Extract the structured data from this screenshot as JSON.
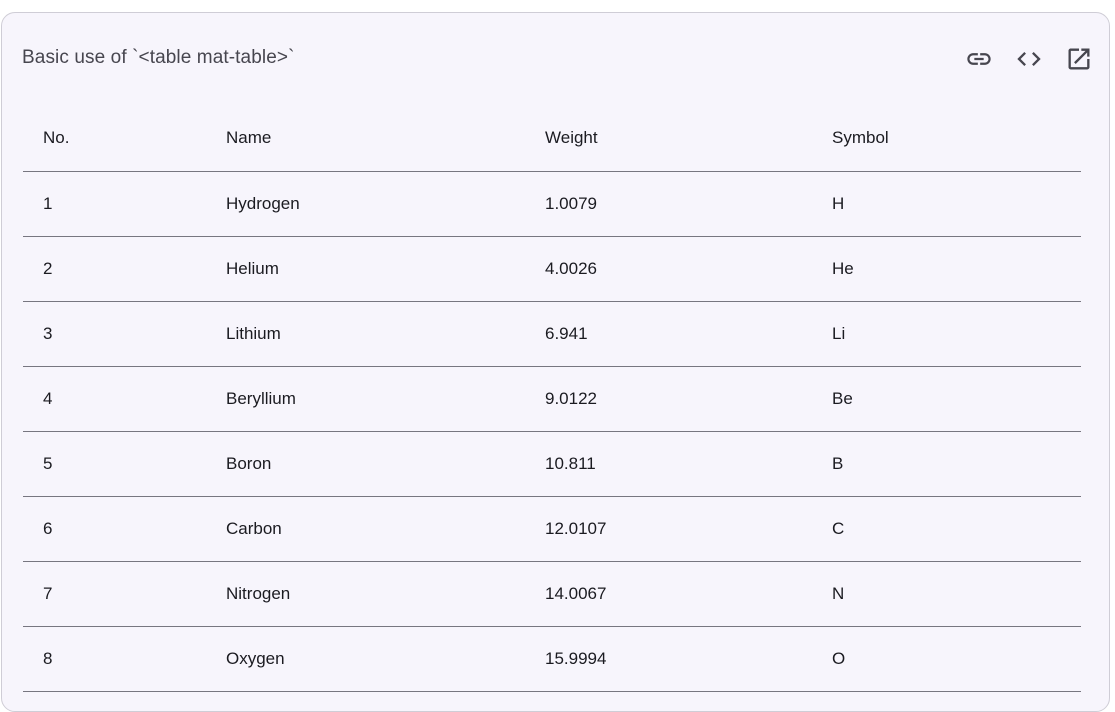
{
  "card": {
    "title": "Basic use of `<table mat-table>`",
    "actions": [
      {
        "icon": "link-icon"
      },
      {
        "icon": "code-icon"
      },
      {
        "icon": "open-in-new-icon"
      }
    ]
  },
  "table": {
    "headers": [
      "No.",
      "Name",
      "Weight",
      "Symbol"
    ],
    "rows": [
      [
        "1",
        "Hydrogen",
        "1.0079",
        "H"
      ],
      [
        "2",
        "Helium",
        "4.0026",
        "He"
      ],
      [
        "3",
        "Lithium",
        "6.941",
        "Li"
      ],
      [
        "4",
        "Beryllium",
        "9.0122",
        "Be"
      ],
      [
        "5",
        "Boron",
        "10.811",
        "B"
      ],
      [
        "6",
        "Carbon",
        "12.0107",
        "C"
      ],
      [
        "7",
        "Nitrogen",
        "14.0067",
        "N"
      ],
      [
        "8",
        "Oxygen",
        "15.9994",
        "O"
      ]
    ]
  },
  "colors": {
    "card_background": "#f7f5fc",
    "divider": "#777680",
    "icon": "#47464f"
  }
}
